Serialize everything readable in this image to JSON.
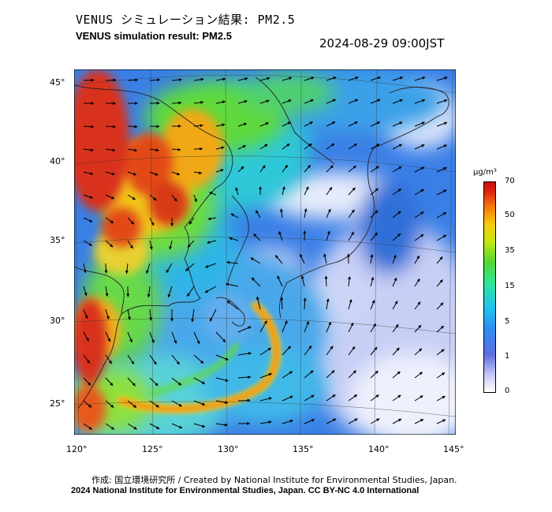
{
  "header": {
    "title_jp": "VENUS シミュレーション結果: PM2.5",
    "title_en": "VENUS simulation result: PM2.5",
    "timestamp": "2024-08-29 09:00JST"
  },
  "map": {
    "lon_ticks": [
      "120°",
      "125°",
      "130°",
      "135°",
      "140°",
      "145°"
    ],
    "lat_ticks": [
      "45°",
      "40°",
      "35°",
      "30°",
      "25°"
    ]
  },
  "colorbar": {
    "unit": "μg/m³",
    "labels": [
      "70",
      "50",
      "35",
      "15",
      "5",
      "1",
      "0"
    ],
    "colors": {
      "low": "#ffffff",
      "blue": "#2e8df2",
      "cyan": "#1fc2f0",
      "green": "#56d62f",
      "yellow": "#f7c90c",
      "orange": "#f47d0c",
      "red": "#c41010"
    }
  },
  "footer": {
    "credit_jp": "作成: 国立環境研究所 / Created by National Institute for Environmental Studies, Japan.",
    "copyright": "2024 National Institute for Environmental Studies, Japan. CC BY-NC 4.0 International"
  }
}
